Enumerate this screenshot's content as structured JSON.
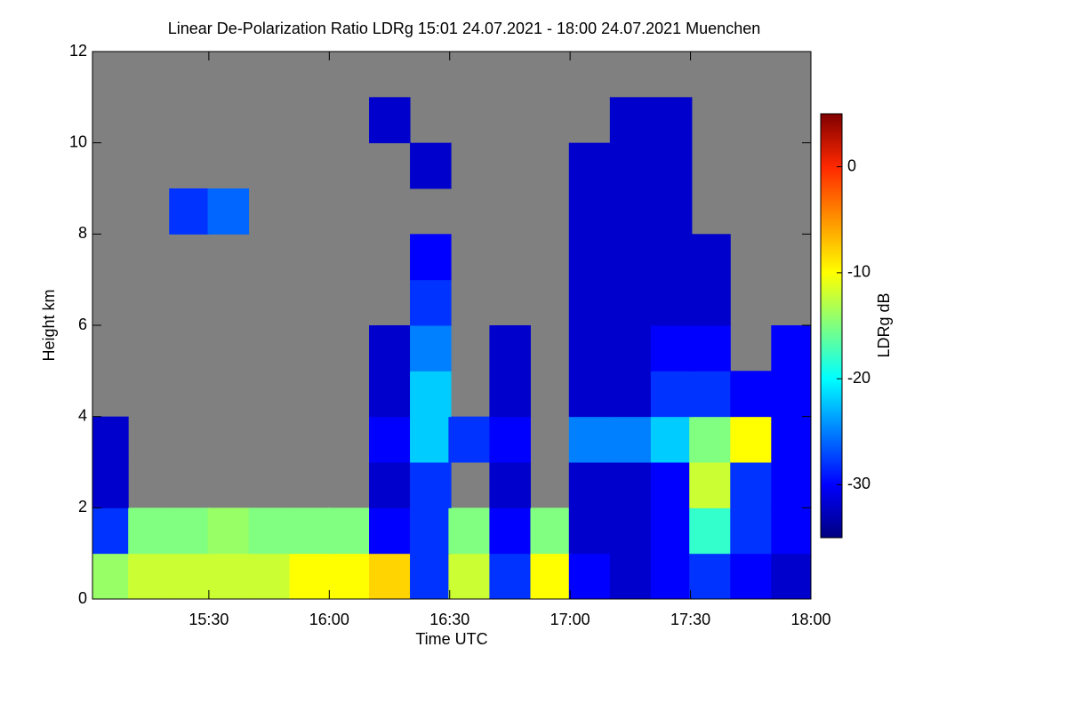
{
  "chart_data": {
    "type": "heatmap",
    "title": "Linear De-Polarization Ratio LDRg   15:01 24.07.2021 - 18:00 24.07.2021 Muenchen",
    "x_label": "Time UTC",
    "y_label": "Height km",
    "colorbar_label": "LDRg dB",
    "x": [
      15.08,
      15.25,
      15.42,
      15.58,
      15.75,
      15.92,
      16.08,
      16.25,
      16.42,
      16.58,
      16.75,
      16.92,
      17.08,
      17.25,
      17.42,
      17.58,
      17.75,
      17.92
    ],
    "y": [
      0.5,
      1.5,
      2.5,
      3.5,
      4.5,
      5.5,
      6.5,
      7.5,
      8.5,
      9.5,
      10.5,
      11.5
    ],
    "z": [
      [
        -14,
        -12,
        -12,
        -12,
        -12,
        -10,
        -10,
        -8,
        -28,
        -12,
        -28,
        -10,
        -30,
        -32,
        -30,
        -28,
        -30,
        -32
      ],
      [
        -28,
        -15,
        -15,
        -14,
        -15,
        -15,
        -15,
        -30,
        -28,
        -15,
        -30,
        -15,
        -32,
        -32,
        -30,
        -18,
        -28,
        -30
      ],
      [
        -32,
        null,
        null,
        null,
        null,
        null,
        null,
        -32,
        -28,
        null,
        -32,
        null,
        -32,
        -32,
        -30,
        -12,
        -28,
        -30
      ],
      [
        -32,
        null,
        null,
        null,
        null,
        null,
        null,
        -30,
        -22,
        -28,
        -30,
        null,
        -25,
        -25,
        -22,
        -15,
        -10,
        -30
      ],
      [
        null,
        null,
        null,
        null,
        null,
        null,
        null,
        -32,
        -22,
        null,
        -32,
        null,
        -32,
        -32,
        -28,
        -28,
        -30,
        -30
      ],
      [
        null,
        null,
        null,
        null,
        null,
        null,
        null,
        -32,
        -25,
        null,
        -32,
        null,
        -32,
        -32,
        -30,
        -30,
        null,
        -30
      ],
      [
        null,
        null,
        null,
        null,
        null,
        null,
        null,
        null,
        -28,
        null,
        null,
        null,
        -32,
        -32,
        -32,
        -32,
        null,
        null
      ],
      [
        null,
        null,
        null,
        null,
        null,
        null,
        null,
        null,
        -30,
        null,
        null,
        null,
        -32,
        -32,
        -32,
        -32,
        null,
        null
      ],
      [
        null,
        null,
        -28,
        -26,
        null,
        null,
        null,
        null,
        null,
        null,
        null,
        null,
        -32,
        -32,
        -32,
        null,
        null,
        null
      ],
      [
        null,
        null,
        null,
        null,
        null,
        null,
        null,
        null,
        -32,
        null,
        null,
        null,
        -32,
        -32,
        -32,
        null,
        null,
        null
      ],
      [
        null,
        null,
        null,
        null,
        null,
        null,
        null,
        -32,
        null,
        null,
        null,
        null,
        null,
        -32,
        -32,
        null,
        null,
        null
      ],
      [
        null,
        null,
        null,
        null,
        null,
        null,
        null,
        null,
        null,
        null,
        null,
        null,
        null,
        null,
        null,
        null,
        null,
        null
      ]
    ],
    "xlim": [
      15.0167,
      18.0
    ],
    "xticks": [
      {
        "value": 15.5,
        "label": "15:30"
      },
      {
        "value": 16,
        "label": "16:00"
      },
      {
        "value": 16.5,
        "label": "16:30"
      },
      {
        "value": 17,
        "label": "17:00"
      },
      {
        "value": 17.5,
        "label": "17:30"
      },
      {
        "value": 18,
        "label": "18:00"
      }
    ],
    "ylim": [
      0,
      12
    ],
    "yticks": [
      0,
      2,
      4,
      6,
      8,
      10,
      12
    ],
    "clim": [
      -35,
      5
    ],
    "cticks": [
      0,
      -10,
      -20,
      -30
    ],
    "colormap": "jet",
    "background": "#808080"
  }
}
